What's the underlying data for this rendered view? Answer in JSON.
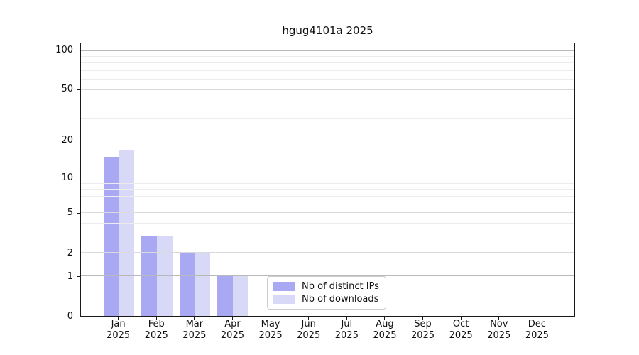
{
  "chart_data": {
    "type": "bar",
    "title": "hgug4101a 2025",
    "categories": [
      "Jan",
      "Feb",
      "Mar",
      "Apr",
      "May",
      "Jun",
      "Jul",
      "Aug",
      "Sep",
      "Oct",
      "Nov",
      "Dec"
    ],
    "category_sublabel": "2025",
    "series": [
      {
        "name": "Nb of distinct IPs",
        "color": "#a9a9f3",
        "values": [
          15,
          3,
          2,
          1,
          0,
          0,
          0,
          0,
          0,
          0,
          0,
          0
        ]
      },
      {
        "name": "Nb of downloads",
        "color": "#d8d8f7",
        "values": [
          17,
          3,
          2,
          1,
          0,
          0,
          0,
          0,
          0,
          0,
          0,
          0
        ]
      }
    ],
    "y_axis": {
      "scale": "log1p",
      "ticks": [
        0,
        1,
        2,
        5,
        10,
        20,
        50,
        100
      ],
      "major_gridlines": [
        1,
        10,
        100
      ],
      "mid_gridlines": [
        2,
        5,
        20,
        50
      ],
      "minor_gridlines": [
        3,
        4,
        6,
        7,
        8,
        9,
        30,
        40,
        60,
        70,
        80,
        90
      ],
      "top_value": 114
    },
    "x_axis": {
      "tick_style": "group-center"
    },
    "grid": true,
    "legend_position": "inside-bottom-center"
  },
  "colors": {
    "grid_major": "#b9b9b9",
    "grid_mid": "#dadada",
    "grid_minor": "#ececec",
    "spine": "#1a1a1a",
    "background": "#ffffff",
    "legend_border": "#cccccc"
  }
}
